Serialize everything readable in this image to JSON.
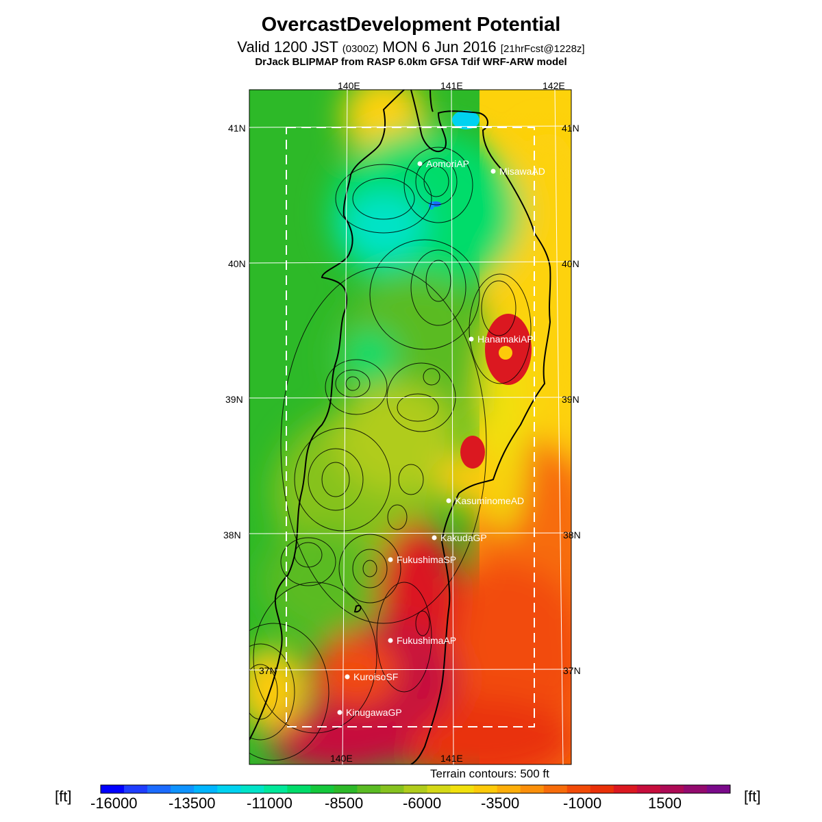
{
  "header": {
    "title": "OvercastDevelopment Potential",
    "valid_prefix": "Valid 1200 JST",
    "valid_z": "(0300Z)",
    "valid_date": "MON 6 Jun 2016",
    "forecast": "[21hrFcst@1228z]",
    "model": "DrJack BLIPMAP from RASP 6.0km GFSA Tdif WRF-ARW model"
  },
  "map": {
    "lon_labels": [
      "140E",
      "141E",
      "142E"
    ],
    "lat_labels": [
      "41N",
      "40N",
      "39N",
      "38N",
      "37N"
    ],
    "stations": [
      {
        "name": "AomoriAP",
        "lon": 140.69,
        "lat": 40.73
      },
      {
        "name": "MisawaAD",
        "lon": 141.37,
        "lat": 40.67
      },
      {
        "name": "HanamakiAP",
        "lon": 141.14,
        "lat": 39.43
      },
      {
        "name": "KasuminomeAD",
        "lon": 140.93,
        "lat": 38.24
      },
      {
        "name": "KakudaGP",
        "lon": 140.79,
        "lat": 37.97
      },
      {
        "name": "FukushimaSP",
        "lon": 140.41,
        "lat": 37.82
      },
      {
        "name": "FukushimaAP",
        "lon": 140.41,
        "lat": 37.23
      },
      {
        "name": "KuroisoSF",
        "lon": 140.04,
        "lat": 36.96
      },
      {
        "name": "KinugawaGP",
        "lon": 139.96,
        "lat": 36.7
      }
    ],
    "terrain_note": "Terrain contours: 500 ft"
  },
  "colorbar": {
    "unit": "[ft]",
    "labels": [
      "-16000",
      "-13500",
      "-11000",
      "-8500",
      "-6000",
      "-3500",
      "-1000",
      "1500"
    ],
    "colors": [
      "#0000ff",
      "#1f3dff",
      "#1b6bff",
      "#0f93ff",
      "#00b5ff",
      "#00d2f0",
      "#00e3c8",
      "#00e89a",
      "#00dc6a",
      "#14c83c",
      "#2db928",
      "#5abb23",
      "#86c21f",
      "#b0cc1b",
      "#d4d816",
      "#f1e00d",
      "#fdca0a",
      "#fdae0a",
      "#fb8f0a",
      "#f76c0a",
      "#f24b08",
      "#e93008",
      "#db1820",
      "#c60d3c",
      "#ad0a55",
      "#930a6e",
      "#7a0a8a"
    ]
  }
}
